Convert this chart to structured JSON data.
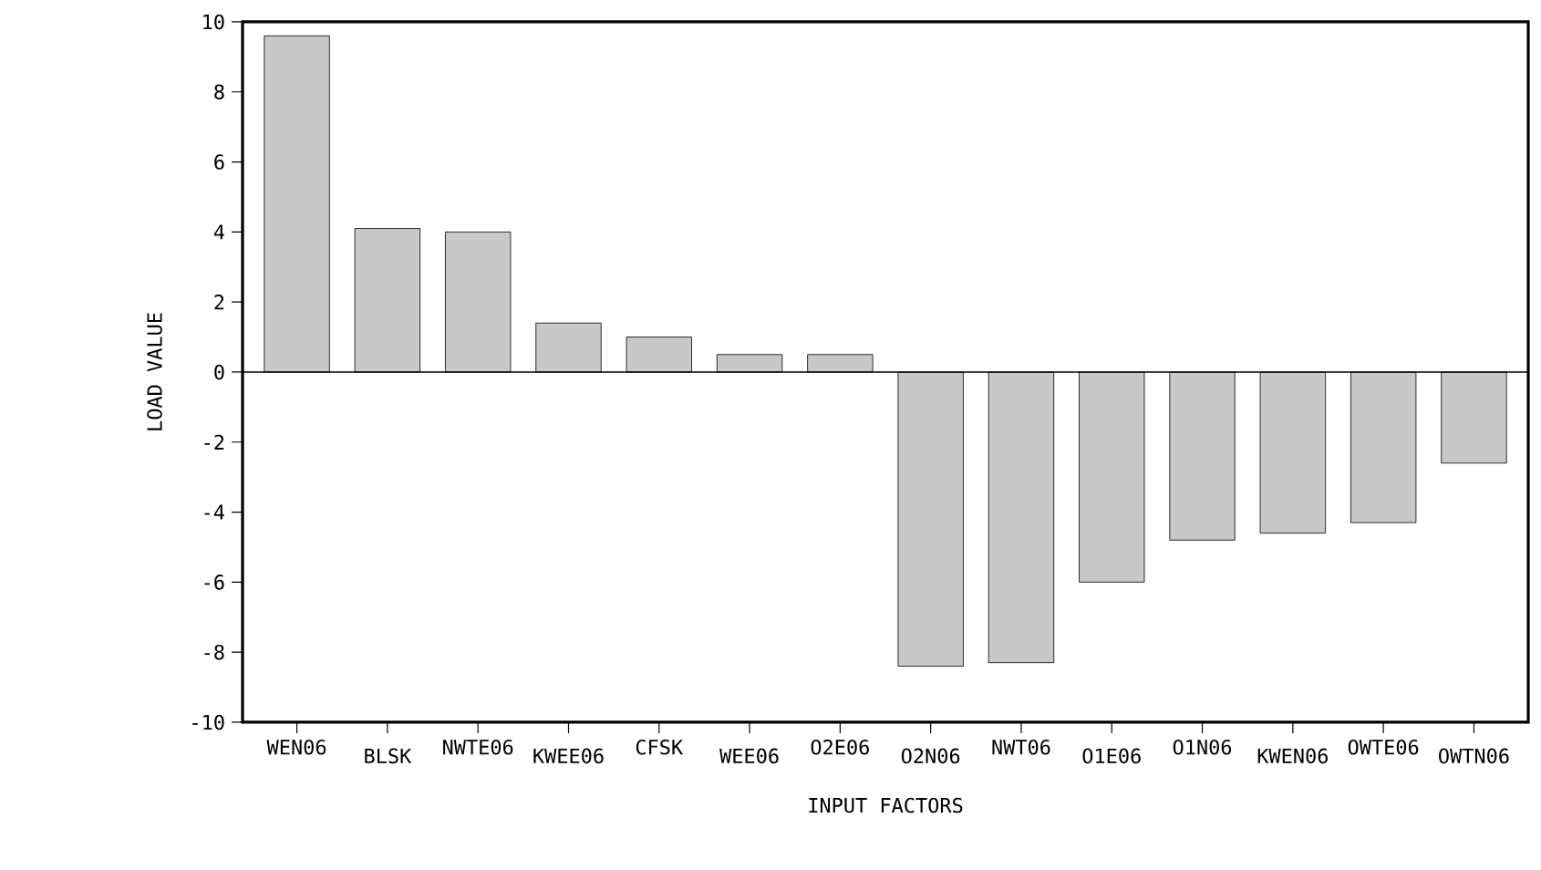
{
  "chart_data": {
    "type": "bar",
    "xlabel": "INPUT FACTORS",
    "ylabel": "LOAD VALUE",
    "categories": [
      "WEN06",
      "BLSK",
      "NWTE06",
      "KWEE06",
      "CFSK",
      "WEE06",
      "O2E06",
      "O2N06",
      "NWT06",
      "O1E06",
      "O1N06",
      "KWEN06",
      "OWTE06",
      "OWTN06"
    ],
    "values": [
      9.6,
      4.1,
      4.0,
      1.4,
      1.0,
      0.5,
      0.5,
      -8.4,
      -8.3,
      -6.0,
      -4.8,
      -4.6,
      -4.3,
      -2.6
    ],
    "color": "#c8c8c8",
    "ylim": [
      -10,
      10
    ],
    "yticks": [
      -10,
      -8,
      -6,
      -4,
      -2,
      0,
      2,
      4,
      6,
      8,
      10
    ],
    "ref_lines": [
      {
        "axis": "y",
        "value": 0,
        "color": "#000000"
      }
    ]
  }
}
